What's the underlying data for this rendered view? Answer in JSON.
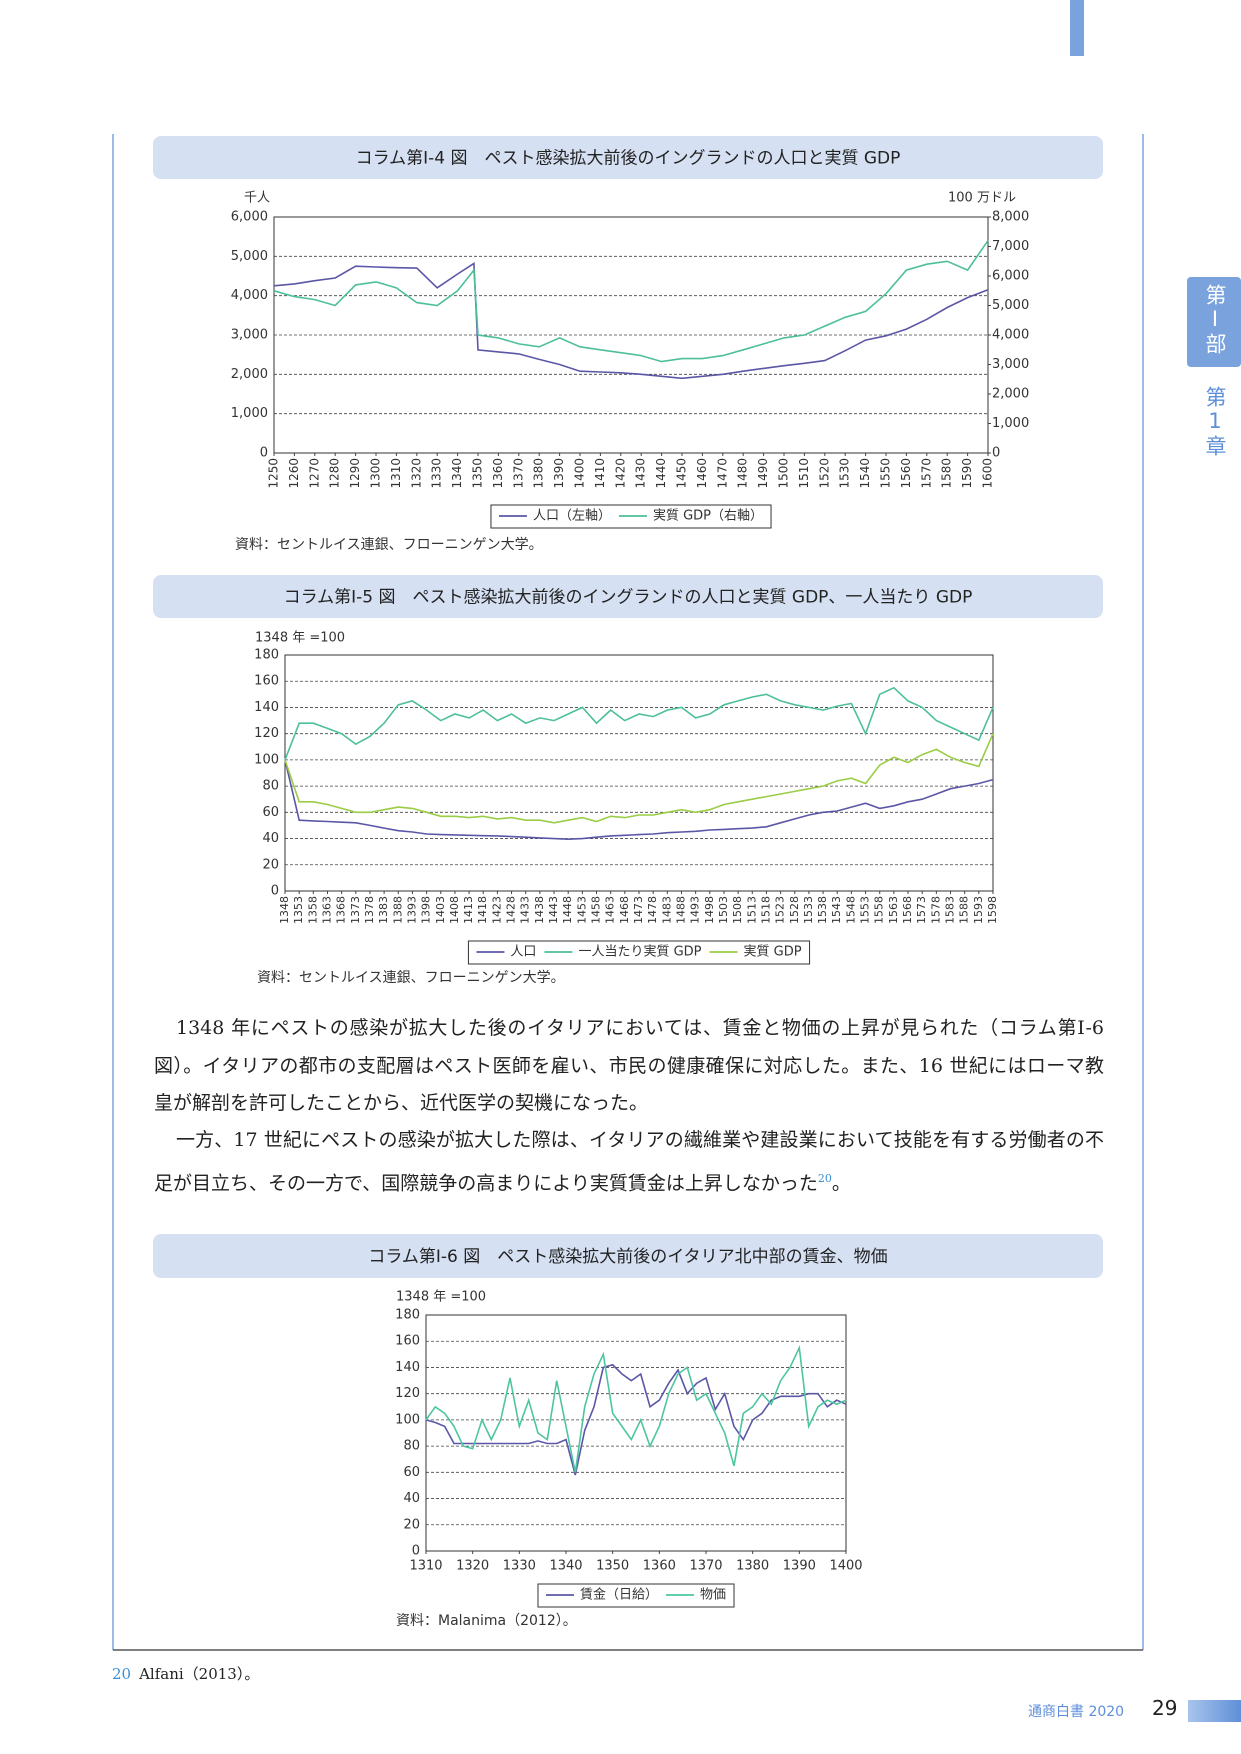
{
  "header": {
    "side_tab": "第Ⅰ部",
    "side_chapter": "第1章"
  },
  "chart_data": [
    {
      "type": "line",
      "title": "コラム第Ⅰ-4 図　ペスト感染拡大前後のイングランドの人口と実質 GDP",
      "y_label": "千人",
      "y2_label": "100 万ドル",
      "x": [
        1250,
        1260,
        1270,
        1280,
        1290,
        1300,
        1310,
        1320,
        1330,
        1340,
        1348,
        1350,
        1360,
        1370,
        1380,
        1390,
        1400,
        1410,
        1420,
        1430,
        1440,
        1450,
        1460,
        1470,
        1480,
        1490,
        1500,
        1510,
        1520,
        1530,
        1540,
        1550,
        1560,
        1570,
        1580,
        1590,
        1600
      ],
      "xlim": [
        1250,
        1600
      ],
      "xticks": [
        1250,
        1260,
        1270,
        1280,
        1290,
        1300,
        1310,
        1320,
        1330,
        1340,
        1350,
        1360,
        1370,
        1380,
        1390,
        1400,
        1410,
        1420,
        1430,
        1440,
        1450,
        1460,
        1470,
        1480,
        1490,
        1500,
        1510,
        1520,
        1530,
        1540,
        1550,
        1560,
        1570,
        1580,
        1590,
        1600
      ],
      "ylim": [
        0,
        6000
      ],
      "yticks": [
        0,
        {
          "value": 1000,
          "label": "1,000"
        },
        {
          "value": 2000,
          "label": "2,000"
        },
        {
          "value": 3000,
          "label": "3,000"
        },
        {
          "value": 4000,
          "label": "4,000"
        },
        {
          "value": 5000,
          "label": "5,000"
        },
        {
          "value": 6000,
          "label": "6,000"
        }
      ],
      "y2lim": [
        0,
        8000
      ],
      "y2ticks": [
        0,
        {
          "value": 1000,
          "label": "1,000"
        },
        {
          "value": 2000,
          "label": "2,000"
        },
        {
          "value": 3000,
          "label": "3,000"
        },
        {
          "value": 4000,
          "label": "4,000"
        },
        {
          "value": 5000,
          "label": "5,000"
        },
        {
          "value": 6000,
          "label": "6,000"
        },
        {
          "value": 7000,
          "label": "7,000"
        },
        {
          "value": 8000,
          "label": "8,000"
        }
      ],
      "grid": true,
      "legend": "bottom",
      "series": [
        {
          "name": "人口（左軸）",
          "color": "#5b57a6",
          "values": [
            4250,
            4300,
            4380,
            4450,
            4750,
            4730,
            4710,
            4700,
            4200,
            4550,
            4820,
            2620,
            2570,
            2520,
            2380,
            2250,
            2080,
            2060,
            2040,
            2000,
            1950,
            1900,
            1950,
            2000,
            2080,
            2150,
            2220,
            2280,
            2350,
            2600,
            2870,
            2980,
            3150,
            3400,
            3700,
            3950,
            4150
          ]
        },
        {
          "name": "実質 GDP（右軸）",
          "color": "#4dbf9a",
          "axis": "y2",
          "values": [
            5500,
            5300,
            5200,
            5000,
            5700,
            5800,
            5600,
            5100,
            5000,
            5500,
            6200,
            4000,
            3900,
            3700,
            3600,
            3900,
            3600,
            3500,
            3400,
            3300,
            3100,
            3200,
            3200,
            3300,
            3500,
            3700,
            3900,
            4000,
            4300,
            4600,
            4800,
            5400,
            6200,
            6400,
            6500,
            6200,
            7200
          ]
        }
      ],
      "source": "資料：セントルイス連銀、フローニンゲン大学。"
    },
    {
      "type": "line",
      "title": "コラム第Ⅰ-5 図　ペスト感染拡大前後のイングランドの人口と実質 GDP、一人当たり GDP",
      "y_label": "1348 年 =100",
      "x": [
        1348,
        1353,
        1358,
        1363,
        1368,
        1373,
        1378,
        1383,
        1388,
        1393,
        1398,
        1403,
        1408,
        1413,
        1418,
        1423,
        1428,
        1433,
        1438,
        1443,
        1448,
        1453,
        1458,
        1463,
        1468,
        1473,
        1478,
        1483,
        1488,
        1493,
        1498,
        1503,
        1508,
        1513,
        1518,
        1523,
        1528,
        1533,
        1538,
        1543,
        1548,
        1553,
        1558,
        1563,
        1568,
        1573,
        1578,
        1583,
        1588,
        1593,
        1598
      ],
      "xlim": [
        1348,
        1598
      ],
      "xticks": [
        1348,
        1353,
        1358,
        1363,
        1368,
        1373,
        1378,
        1383,
        1388,
        1393,
        1398,
        1403,
        1408,
        1413,
        1418,
        1423,
        1428,
        1433,
        1438,
        1443,
        1448,
        1453,
        1458,
        1463,
        1468,
        1473,
        1478,
        1483,
        1488,
        1493,
        1498,
        1503,
        1508,
        1513,
        1518,
        1523,
        1528,
        1533,
        1538,
        1543,
        1548,
        1553,
        1558,
        1563,
        1568,
        1573,
        1578,
        1583,
        1588,
        1593,
        1598
      ],
      "ylim": [
        0,
        180
      ],
      "yticks": [
        0,
        20,
        40,
        60,
        80,
        100,
        120,
        140,
        160,
        180
      ],
      "grid": true,
      "legend": "bottom",
      "series": [
        {
          "name": "人口",
          "color": "#5b57a6",
          "values": [
            100,
            54,
            53.5,
            53,
            52.5,
            52,
            50,
            48,
            46,
            45,
            43.5,
            43,
            42.8,
            42.5,
            42.2,
            42,
            41.5,
            41,
            40.5,
            40,
            39.5,
            40,
            41,
            42,
            42.5,
            43,
            43.5,
            44.5,
            45,
            45.5,
            46.5,
            47,
            47.5,
            48,
            49,
            52,
            55,
            58,
            60,
            61,
            64,
            67,
            63,
            65,
            68,
            70,
            74,
            78,
            80,
            82,
            85
          ]
        },
        {
          "name": "一人当たり実質 GDP",
          "color": "#4dbf9a",
          "values": [
            100,
            128,
            128,
            124,
            120,
            112,
            118,
            128,
            142,
            145,
            138,
            130,
            135,
            132,
            138,
            130,
            135,
            128,
            132,
            130,
            135,
            140,
            128,
            138,
            130,
            135,
            133,
            138,
            140,
            132,
            135,
            142,
            145,
            148,
            150,
            145,
            142,
            140,
            138,
            141,
            143,
            120,
            150,
            155,
            145,
            140,
            130,
            125,
            120,
            115,
            140
          ]
        },
        {
          "name": "実質 GDP",
          "color": "#9acd45",
          "values": [
            100,
            68,
            68,
            66,
            63,
            60,
            60,
            62,
            64,
            63,
            60,
            57,
            57,
            56,
            57,
            55,
            56,
            54,
            54,
            52,
            54,
            56,
            53,
            57,
            56,
            58,
            58,
            60,
            62,
            60,
            62,
            66,
            68,
            70,
            72,
            74,
            76,
            78,
            80,
            84,
            86,
            82,
            96,
            102,
            98,
            104,
            108,
            102,
            98,
            95,
            120
          ]
        }
      ],
      "source": "資料：セントルイス連銀、フローニンゲン大学。"
    },
    {
      "type": "line",
      "title": "コラム第Ⅰ-6 図　ペスト感染拡大前後のイタリア北中部の賃金、物価",
      "y_label": "1348 年 =100",
      "x": [
        1310,
        1312,
        1314,
        1316,
        1318,
        1320,
        1322,
        1324,
        1326,
        1328,
        1330,
        1332,
        1334,
        1336,
        1338,
        1340,
        1342,
        1344,
        1346,
        1348,
        1350,
        1352,
        1354,
        1356,
        1358,
        1360,
        1362,
        1364,
        1366,
        1368,
        1370,
        1372,
        1374,
        1376,
        1378,
        1380,
        1382,
        1384,
        1386,
        1388,
        1390,
        1392,
        1394,
        1396,
        1398,
        1400
      ],
      "xlim": [
        1310,
        1400
      ],
      "xticks": [
        1310,
        1320,
        1330,
        1340,
        1350,
        1360,
        1370,
        1380,
        1390,
        1400
      ],
      "ylim": [
        0,
        180
      ],
      "yticks": [
        0,
        20,
        40,
        60,
        80,
        100,
        120,
        140,
        160,
        180
      ],
      "grid": true,
      "legend": "bottom",
      "series": [
        {
          "name": "賃金（日給）",
          "color": "#5b57a6",
          "values": [
            100,
            98,
            95,
            82,
            82,
            82,
            82,
            82,
            82,
            82,
            82,
            82,
            84,
            82,
            82,
            85,
            58,
            92,
            110,
            140,
            142,
            135,
            130,
            135,
            110,
            115,
            128,
            138,
            120,
            128,
            132,
            108,
            120,
            95,
            85,
            100,
            105,
            115,
            118,
            118,
            118,
            120,
            120,
            110,
            115,
            112
          ]
        },
        {
          "name": "物価",
          "color": "#4dc5a0",
          "values": [
            100,
            110,
            105,
            95,
            80,
            78,
            100,
            85,
            100,
            132,
            95,
            115,
            90,
            85,
            130,
            95,
            60,
            110,
            135,
            150,
            105,
            95,
            85,
            100,
            80,
            95,
            120,
            135,
            140,
            115,
            120,
            105,
            90,
            65,
            105,
            110,
            120,
            112,
            130,
            140,
            155,
            95,
            110,
            115,
            112,
            115
          ]
        }
      ],
      "source": "資料：Malanima（2012）。"
    }
  ],
  "body": {
    "paragraph1": "1348 年にペストの感染が拡大した後のイタリアにおいては、賃金と物価の上昇が見られた（コラム第Ⅰ-6 図）。イタリアの都市の支配層はペスト医師を雇い、市民の健康確保に対応した。また、16 世紀にはローマ教皇が解剖を許可したことから、近代医学の契機になった。",
    "paragraph2": {
      "text": "一方、17 世紀にペストの感染が拡大した際は、イタリアの繊維業や建設業において技能を有する労働者の不足が目立ち、その一方で、国際競争の高まりにより実質賃金は上昇しなかった",
      "note_ref": "20",
      "after": "。"
    }
  },
  "footnote": {
    "number": "20",
    "text": "Alfani（2013）。"
  },
  "footer": {
    "publication": "通商白書 2020",
    "page": "29"
  }
}
